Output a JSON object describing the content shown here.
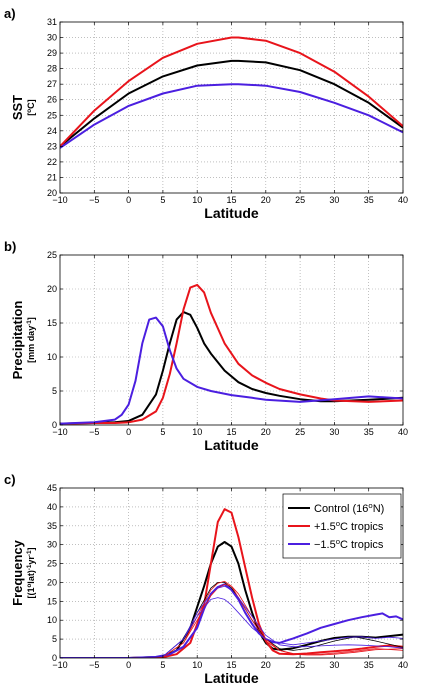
{
  "chart_data": [
    {
      "type": "line",
      "panel_label": "a)",
      "ylabel": "SST",
      "yunit_parts": [
        "[",
        "o",
        "C]"
      ],
      "xlabel": "Latitude",
      "xlim": [
        -10,
        40
      ],
      "ylim": [
        20,
        31
      ],
      "xticks": [
        -10,
        -5,
        0,
        5,
        10,
        15,
        20,
        25,
        30,
        35,
        40
      ],
      "yticks": [
        20,
        21,
        22,
        23,
        24,
        25,
        26,
        27,
        28,
        29,
        30,
        31
      ],
      "grid": true,
      "series": [
        {
          "color": "#000000",
          "x": [
            -10,
            -5,
            0,
            5,
            10,
            15,
            16,
            20,
            25,
            30,
            35,
            40
          ],
          "y": [
            23.0,
            24.8,
            26.4,
            27.5,
            28.2,
            28.5,
            28.5,
            28.4,
            27.9,
            27.0,
            25.8,
            24.2
          ]
        },
        {
          "color": "#e8141b",
          "x": [
            -10,
            -5,
            0,
            5,
            10,
            15,
            16,
            20,
            25,
            30,
            35,
            40
          ],
          "y": [
            23.0,
            25.3,
            27.2,
            28.7,
            29.6,
            30.0,
            30.0,
            29.8,
            29.0,
            27.8,
            26.2,
            24.3
          ]
        },
        {
          "color": "#4b1fe0",
          "x": [
            -10,
            -5,
            0,
            5,
            10,
            15,
            16,
            20,
            25,
            30,
            35,
            40
          ],
          "y": [
            22.9,
            24.4,
            25.6,
            26.4,
            26.9,
            27.0,
            27.0,
            26.9,
            26.5,
            25.8,
            25.0,
            23.9
          ]
        }
      ]
    },
    {
      "type": "line",
      "panel_label": "b)",
      "ylabel": "Precipitation",
      "yunit_parts": [
        "[mm day",
        "-1",
        "]"
      ],
      "xlabel": "Latitude",
      "xlim": [
        -10,
        40
      ],
      "ylim": [
        0,
        25
      ],
      "xticks": [
        -10,
        -5,
        0,
        5,
        10,
        15,
        20,
        25,
        30,
        35,
        40
      ],
      "yticks": [
        0,
        5,
        10,
        15,
        20,
        25
      ],
      "grid": true,
      "series": [
        {
          "color": "#000000",
          "x": [
            -10,
            -5,
            -2,
            0,
            2,
            4,
            5,
            6,
            7,
            8,
            9,
            10,
            11,
            12,
            14,
            16,
            18,
            20,
            22,
            25,
            28,
            30,
            35,
            40
          ],
          "y": [
            0.2,
            0.3,
            0.4,
            0.6,
            1.5,
            4.5,
            8,
            12,
            15.5,
            16.6,
            16.2,
            14.3,
            12,
            10.5,
            8,
            6.3,
            5.3,
            4.7,
            4.3,
            3.8,
            3.5,
            3.5,
            3.7,
            4.0
          ]
        },
        {
          "color": "#e8141b",
          "x": [
            -10,
            -5,
            -2,
            0,
            2,
            4,
            5,
            6,
            7,
            8,
            9,
            10,
            11,
            12,
            14,
            16,
            18,
            20,
            22,
            25,
            28,
            30,
            35,
            40
          ],
          "y": [
            0.2,
            0.3,
            0.3,
            0.4,
            0.8,
            2,
            4,
            7.5,
            12,
            17,
            20.2,
            20.6,
            19.5,
            16.5,
            12,
            9,
            7.3,
            6.2,
            5.3,
            4.5,
            3.9,
            3.6,
            3.4,
            3.6
          ]
        },
        {
          "color": "#4b1fe0",
          "x": [
            -10,
            -5,
            -2,
            -1,
            0,
            1,
            2,
            3,
            4,
            5,
            6,
            7,
            8,
            10,
            12,
            15,
            18,
            20,
            25,
            30,
            35,
            40
          ],
          "y": [
            0.2,
            0.4,
            0.8,
            1.5,
            3,
            6.5,
            12,
            15.5,
            15.8,
            14.5,
            11,
            8.3,
            6.8,
            5.6,
            5,
            4.4,
            4,
            3.7,
            3.4,
            3.8,
            4.2,
            3.9
          ]
        }
      ]
    },
    {
      "type": "line",
      "panel_label": "c)",
      "ylabel": "Frequency",
      "yunit_parts": [
        "[(1",
        "o",
        "lat)",
        "-1",
        "yr",
        "-1",
        "]"
      ],
      "xlabel": "Latitude",
      "xlim": [
        -10,
        40
      ],
      "ylim": [
        0,
        45
      ],
      "xticks": [
        -10,
        -5,
        0,
        5,
        10,
        15,
        20,
        25,
        30,
        35,
        40
      ],
      "yticks": [
        0,
        5,
        10,
        15,
        20,
        25,
        30,
        35,
        40,
        45
      ],
      "grid": true,
      "legend": {
        "placement": "top-right",
        "entries": [
          "Control (16ºN)",
          "+1.5ºC tropics",
          "−1.5ºC tropics"
        ]
      },
      "legend_parts": [
        [
          "Control (16",
          "o",
          "N)"
        ],
        [
          "+1.5",
          "o",
          "C tropics"
        ],
        [
          "−1.5",
          "o",
          "C tropics"
        ]
      ],
      "series": [
        {
          "color": "#000000",
          "width": 2,
          "x": [
            -10,
            0,
            5,
            7,
            9,
            11,
            12,
            13,
            14,
            15,
            16,
            17,
            18,
            19,
            20,
            21,
            22,
            24,
            26,
            28,
            30,
            32,
            34,
            36,
            38,
            40
          ],
          "y": [
            0,
            0,
            0.3,
            2,
            8,
            19,
            25,
            29.5,
            30.7,
            29.5,
            25,
            18,
            12,
            7,
            4,
            2.5,
            2.2,
            2.6,
            3.5,
            4.5,
            5.3,
            5.6,
            5.6,
            5.4,
            5.8,
            6.2
          ]
        },
        {
          "color": "#e8141b",
          "width": 2,
          "x": [
            -10,
            0,
            5,
            7,
            9,
            11,
            12,
            13,
            14,
            15,
            16,
            17,
            18,
            19,
            20,
            21,
            22,
            24,
            26,
            28,
            30,
            32,
            34,
            36,
            38,
            40
          ],
          "y": [
            0,
            0,
            0.2,
            1,
            4,
            14,
            25,
            36,
            39.4,
            38.5,
            32,
            24,
            16,
            9,
            4.5,
            2,
            1.1,
            1,
            1.2,
            1.5,
            1.8,
            2.1,
            2.5,
            3,
            3.3,
            3
          ]
        },
        {
          "color": "#4b1fe0",
          "width": 2,
          "x": [
            -10,
            0,
            4,
            6,
            8,
            10,
            11,
            12,
            13,
            14,
            15,
            16,
            17,
            18,
            19,
            20,
            21,
            22,
            23,
            24,
            26,
            28,
            30,
            32,
            34,
            36,
            37,
            38,
            39,
            40
          ],
          "y": [
            0,
            0,
            0.3,
            1,
            3,
            8,
            13,
            17,
            18.8,
            19.5,
            18,
            15.5,
            12,
            9,
            6.5,
            5,
            4.2,
            4,
            4.6,
            5.2,
            6.5,
            8,
            9,
            10,
            10.8,
            11.5,
            11.8,
            10.8,
            11,
            10.2
          ]
        },
        {
          "color": "#000000",
          "width": 0.8,
          "x": [
            -10,
            0,
            5,
            8,
            10,
            12,
            13,
            14,
            15,
            16,
            18,
            20,
            22,
            24,
            26,
            28,
            30,
            33,
            36,
            40
          ],
          "y": [
            0,
            0,
            0.4,
            5,
            12,
            18.5,
            20,
            20,
            18.5,
            16,
            10,
            5,
            2.5,
            2,
            2.5,
            3.5,
            4.5,
            5.6,
            4.5,
            2.8
          ]
        },
        {
          "color": "#e8141b",
          "width": 0.8,
          "x": [
            -10,
            0,
            5,
            8,
            10,
            12,
            13,
            14,
            15,
            16,
            18,
            20,
            22,
            24,
            26,
            28,
            30,
            33,
            36,
            40
          ],
          "y": [
            0,
            0,
            0.3,
            4,
            11,
            18,
            19.8,
            20.3,
            19,
            16,
            10,
            4.5,
            2,
            1.2,
            1,
            1,
            1.3,
            1.8,
            2.5,
            2
          ]
        },
        {
          "color": "#e8141b",
          "width": 0.8,
          "x": [
            -10,
            0,
            5,
            8,
            10,
            12,
            13,
            14,
            15,
            16,
            18,
            20,
            22,
            24,
            26,
            28,
            30,
            33,
            36,
            40
          ],
          "y": [
            0,
            0,
            0.3,
            4,
            10,
            16.5,
            18.5,
            19.5,
            19,
            17,
            11,
            5,
            2,
            1,
            0.8,
            0.8,
            1,
            1.5,
            2.2,
            2.5
          ]
        },
        {
          "color": "#4b1fe0",
          "width": 0.8,
          "x": [
            -10,
            0,
            5,
            8,
            10,
            12,
            13,
            14,
            15,
            16,
            18,
            20,
            22,
            24,
            26,
            28,
            30,
            32,
            34,
            36,
            38,
            40
          ],
          "y": [
            0,
            0,
            0.4,
            5,
            11,
            15.5,
            16,
            15.5,
            14,
            12,
            8,
            5,
            4,
            3.5,
            4,
            4.5,
            5,
            5.5,
            5.6,
            5.2,
            5.5,
            5.2
          ]
        },
        {
          "color": "#4b1fe0",
          "width": 0.8,
          "x": [
            -10,
            0,
            5,
            8,
            10,
            12,
            13,
            14,
            15,
            16,
            18,
            20,
            22,
            24,
            26,
            28,
            30,
            32,
            34,
            36,
            38,
            40
          ],
          "y": [
            0,
            0,
            0.4,
            5,
            12,
            17,
            18.5,
            19,
            18,
            16,
            11,
            6,
            3.5,
            3,
            3,
            3.2,
            3.4,
            3.5,
            3.4,
            3.2,
            3,
            2.6
          ]
        }
      ]
    }
  ]
}
